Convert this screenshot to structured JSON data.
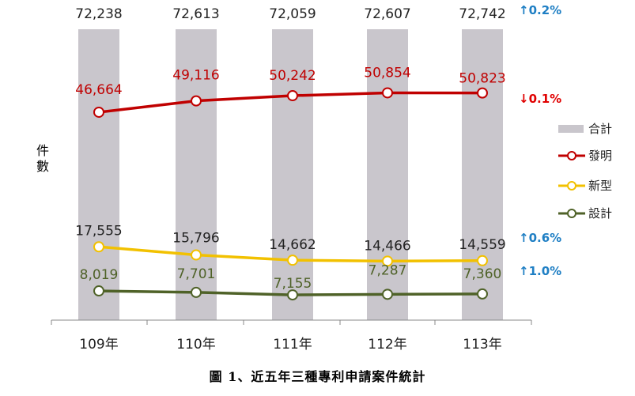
{
  "chart_data": {
    "type": "bar+line",
    "categories": [
      "109年",
      "110年",
      "111年",
      "112年",
      "113年"
    ],
    "ylabel": "件數",
    "caption": "圖 1、近五年三種專利申請案件統計",
    "series": [
      {
        "name": "合計",
        "kind": "bar",
        "color": "#c9c6cc",
        "label_color": "#222222",
        "values": [
          72238,
          72613,
          72059,
          72607,
          72742
        ],
        "labels": [
          "72,238",
          "72,613",
          "72,059",
          "72,607",
          "72,742"
        ],
        "change": "↑0.2%",
        "change_color": "#1f7fc4"
      },
      {
        "name": "發明",
        "kind": "line",
        "color": "#c00000",
        "label_color": "#c00000",
        "values": [
          46664,
          49116,
          50242,
          50854,
          50823
        ],
        "labels": [
          "46,664",
          "49,116",
          "50,242",
          "50,854",
          "50,823"
        ],
        "change": "↓0.1%",
        "change_color": "#e00000"
      },
      {
        "name": "新型",
        "kind": "line",
        "color": "#f2c100",
        "label_color": "#222222",
        "values": [
          17555,
          15796,
          14662,
          14466,
          14559
        ],
        "labels": [
          "17,555",
          "15,796",
          "14,662",
          "14,466",
          "14,559"
        ],
        "change": "↑0.6%",
        "change_color": "#1f7fc4"
      },
      {
        "name": "設計",
        "kind": "line",
        "color": "#4f6228",
        "label_color": "#4f6228",
        "values": [
          8019,
          7701,
          7155,
          7287,
          7360
        ],
        "labels": [
          "8,019",
          "7,701",
          "7,155",
          "7,287",
          "7,360"
        ],
        "change": "↑1.0%",
        "change_color": "#1f7fc4"
      }
    ],
    "legend": "right",
    "grid": false
  }
}
